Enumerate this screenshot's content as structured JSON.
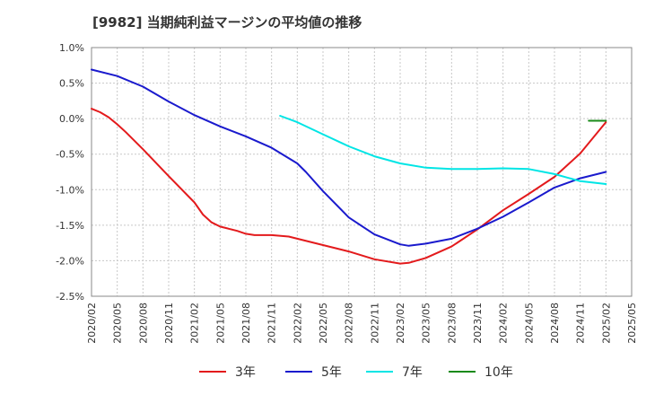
{
  "chart_data": {
    "type": "line",
    "title": "[9982]  当期純利益マージンの平均値の推移",
    "xlabel": "",
    "ylabel": "",
    "x_ticks": [
      "2020/02",
      "2020/05",
      "2020/08",
      "2020/11",
      "2021/02",
      "2021/05",
      "2021/08",
      "2021/11",
      "2022/02",
      "2022/05",
      "2022/08",
      "2022/11",
      "2023/02",
      "2023/05",
      "2023/08",
      "2023/11",
      "2024/02",
      "2024/05",
      "2024/08",
      "2024/11",
      "2025/02",
      "2025/05"
    ],
    "y_ticks": [
      1.0,
      0.5,
      0.0,
      -0.5,
      -1.0,
      -1.5,
      -2.0,
      -2.5
    ],
    "y_tick_labels": [
      "1.0%",
      "0.5%",
      "0.0%",
      "-0.5%",
      "-1.0%",
      "-1.5%",
      "-2.0%",
      "-2.5%"
    ],
    "ylim": [
      -2.5,
      1.0
    ],
    "grid": true,
    "legend_position": "bottom",
    "series": [
      {
        "name": "3年",
        "color": "#e31a1c",
        "points": [
          [
            "2020/02",
            0.14
          ],
          [
            "2020/03",
            0.09
          ],
          [
            "2020/04",
            0.02
          ],
          [
            "2020/05",
            -0.08
          ],
          [
            "2020/06",
            -0.19
          ],
          [
            "2020/08",
            -0.43
          ],
          [
            "2020/11",
            -0.81
          ],
          [
            "2021/02",
            -1.18
          ],
          [
            "2021/03",
            -1.35
          ],
          [
            "2021/04",
            -1.46
          ],
          [
            "2021/05",
            -1.52
          ],
          [
            "2021/06",
            -1.55
          ],
          [
            "2021/07",
            -1.58
          ],
          [
            "2021/08",
            -1.62
          ],
          [
            "2021/09",
            -1.64
          ],
          [
            "2021/11",
            -1.64
          ],
          [
            "2022/01",
            -1.66
          ],
          [
            "2022/02",
            -1.69
          ],
          [
            "2022/05",
            -1.78
          ],
          [
            "2022/08",
            -1.87
          ],
          [
            "2022/11",
            -1.98
          ],
          [
            "2023/02",
            -2.04
          ],
          [
            "2023/03",
            -2.03
          ],
          [
            "2023/05",
            -1.96
          ],
          [
            "2023/08",
            -1.8
          ],
          [
            "2023/11",
            -1.56
          ],
          [
            "2024/02",
            -1.29
          ],
          [
            "2024/05",
            -1.06
          ],
          [
            "2024/08",
            -0.82
          ],
          [
            "2024/11",
            -0.49
          ],
          [
            "2025/02",
            -0.05
          ]
        ]
      },
      {
        "name": "5年",
        "color": "#1a1acd",
        "points": [
          [
            "2020/02",
            0.69
          ],
          [
            "2020/05",
            0.6
          ],
          [
            "2020/08",
            0.45
          ],
          [
            "2020/11",
            0.24
          ],
          [
            "2021/02",
            0.05
          ],
          [
            "2021/05",
            -0.11
          ],
          [
            "2021/08",
            -0.25
          ],
          [
            "2021/11",
            -0.41
          ],
          [
            "2022/02",
            -0.63
          ],
          [
            "2022/03",
            -0.75
          ],
          [
            "2022/05",
            -1.02
          ],
          [
            "2022/08",
            -1.39
          ],
          [
            "2022/11",
            -1.63
          ],
          [
            "2023/02",
            -1.77
          ],
          [
            "2023/03",
            -1.79
          ],
          [
            "2023/05",
            -1.76
          ],
          [
            "2023/08",
            -1.69
          ],
          [
            "2023/11",
            -1.55
          ],
          [
            "2024/02",
            -1.38
          ],
          [
            "2024/05",
            -1.18
          ],
          [
            "2024/08",
            -0.97
          ],
          [
            "2024/11",
            -0.84
          ],
          [
            "2025/02",
            -0.75
          ]
        ]
      },
      {
        "name": "7年",
        "color": "#00e5e5",
        "points": [
          [
            "2021/12",
            0.04
          ],
          [
            "2022/02",
            -0.05
          ],
          [
            "2022/05",
            -0.22
          ],
          [
            "2022/08",
            -0.39
          ],
          [
            "2022/11",
            -0.53
          ],
          [
            "2023/02",
            -0.63
          ],
          [
            "2023/05",
            -0.69
          ],
          [
            "2023/08",
            -0.71
          ],
          [
            "2023/11",
            -0.71
          ],
          [
            "2024/02",
            -0.7
          ],
          [
            "2024/05",
            -0.71
          ],
          [
            "2024/08",
            -0.78
          ],
          [
            "2024/11",
            -0.88
          ],
          [
            "2025/02",
            -0.92
          ]
        ]
      },
      {
        "name": "10年",
        "color": "#1a8a1a",
        "points": [
          [
            "2024/12",
            -0.03
          ],
          [
            "2025/02",
            -0.03
          ]
        ]
      }
    ]
  }
}
